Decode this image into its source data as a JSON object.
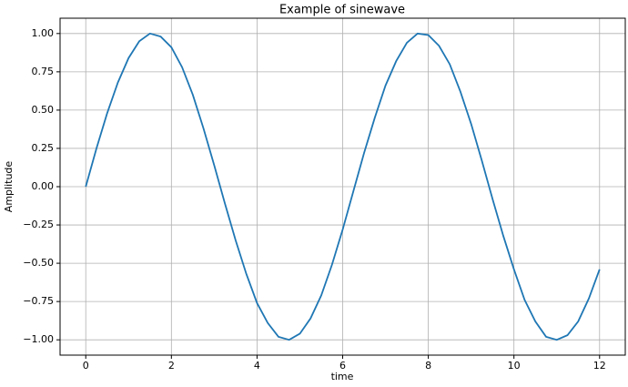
{
  "chart_data": {
    "type": "line",
    "title": "Example of sinewave",
    "xlabel": "time",
    "ylabel": "Amplitude",
    "x": [
      0,
      0.25,
      0.5,
      0.75,
      1,
      1.25,
      1.5,
      1.75,
      2,
      2.25,
      2.5,
      2.75,
      3,
      3.25,
      3.5,
      3.75,
      4,
      4.25,
      4.5,
      4.75,
      5,
      5.25,
      5.5,
      5.75,
      6,
      6.25,
      6.5,
      6.75,
      7,
      7.25,
      7.5,
      7.75,
      8,
      8.25,
      8.5,
      8.75,
      9,
      9.25,
      9.5,
      9.75,
      10,
      10.25,
      10.5,
      10.75,
      11,
      11.25,
      11.5,
      11.75,
      12
    ],
    "series": [
      {
        "color": "#1f77b4",
        "values": [
          0,
          0.25,
          0.48,
          0.68,
          0.84,
          0.95,
          1.0,
          0.98,
          0.91,
          0.78,
          0.6,
          0.38,
          0.14,
          -0.11,
          -0.35,
          -0.57,
          -0.76,
          -0.89,
          -0.98,
          -1.0,
          -0.96,
          -0.86,
          -0.71,
          -0.51,
          -0.28,
          -0.03,
          0.22,
          0.45,
          0.66,
          0.82,
          0.94,
          1.0,
          0.99,
          0.92,
          0.8,
          0.62,
          0.41,
          0.17,
          -0.08,
          -0.32,
          -0.54,
          -0.74,
          -0.88,
          -0.98,
          -1.0,
          -0.97,
          -0.88,
          -0.73,
          -0.54
        ]
      }
    ],
    "xlim": [
      -0.6,
      12.6
    ],
    "xticks": [
      0,
      2,
      4,
      6,
      8,
      10,
      12
    ],
    "ylim": [
      -1.1,
      1.1
    ],
    "yticks": [
      {
        "value": -1,
        "label": "−1.00"
      },
      {
        "value": -0.75,
        "label": "−0.75"
      },
      {
        "value": -0.5,
        "label": "−0.50"
      },
      {
        "value": -0.25,
        "label": "−0.25"
      },
      {
        "value": 0,
        "label": "0.00"
      },
      {
        "value": 0.25,
        "label": "0.25"
      },
      {
        "value": 0.5,
        "label": "0.50"
      },
      {
        "value": 0.75,
        "label": "0.75"
      },
      {
        "value": 1,
        "label": "1.00"
      }
    ],
    "grid": true
  }
}
